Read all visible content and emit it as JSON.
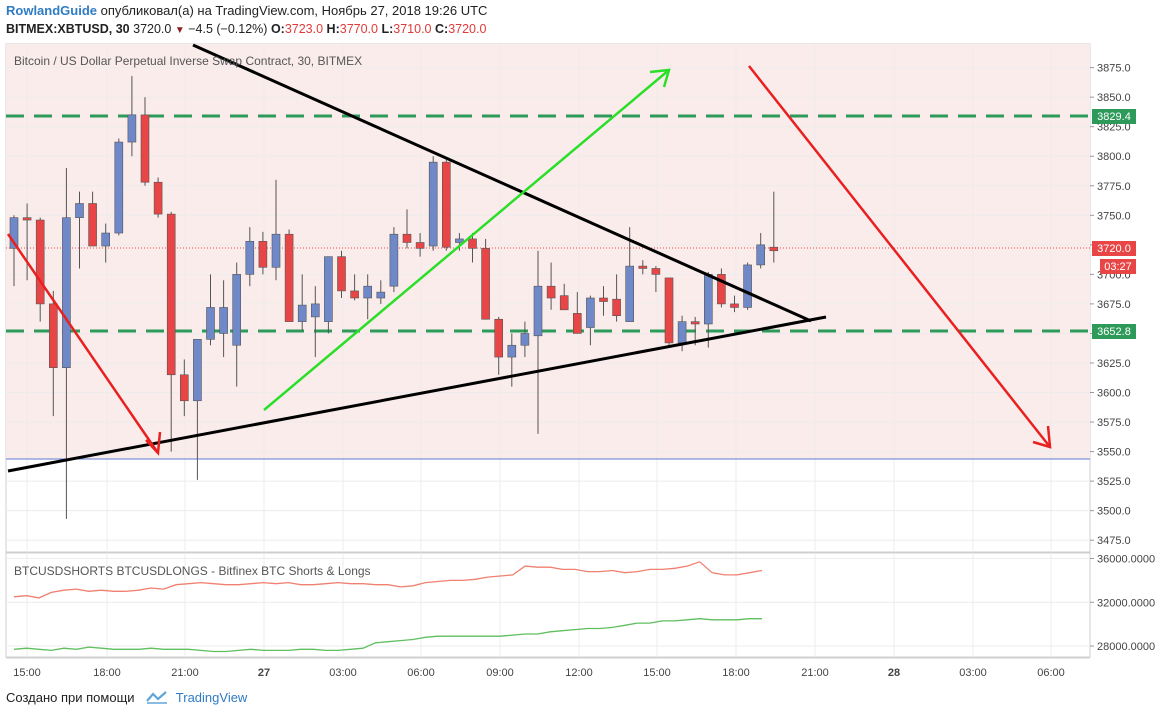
{
  "header": {
    "author": "RowlandGuide",
    "published_text": "опубликовал(а) на TradingView.com, Ноябрь 27, 2018 19:26 UTC",
    "symbol": "BITMEX:XBTUSD, 30",
    "last": "3720.0",
    "change": "−4.5 (−0.12%)",
    "o_label": "O:",
    "o_val": "3723.0",
    "h_label": "H:",
    "h_val": "3770.0",
    "l_label": "L:",
    "l_val": "3710.0",
    "c_label": "C:",
    "c_val": "3720.0"
  },
  "footer": {
    "created_with": "Создано при помощи",
    "brand": "TradingView"
  },
  "colors": {
    "up": "#6f88c8",
    "down": "#e84646",
    "bg_zone": "#fbecec",
    "green_dash": "#2e9a5a",
    "arrow_red": "#e8201f",
    "arrow_green": "#2adf27",
    "shorts": "#f08070",
    "longs": "#5fbf5f"
  },
  "chart_data": [
    {
      "type": "candlestick",
      "title": "Bitcoin / US Dollar Perpetual Inverse Swap Contract, 30, BITMEX",
      "ylim": [
        3465,
        3895
      ],
      "y_ticks": [
        "3875.0",
        "3850.0",
        "3825.0",
        "3800.0",
        "3775.0",
        "3750.0",
        "3725.0",
        "3700.0",
        "3675.0",
        "3650.0",
        "3625.0",
        "3600.0",
        "3575.0",
        "3550.0",
        "3525.0",
        "3500.0",
        "3475.0"
      ],
      "x_ticks": [
        "15:00",
        "18:00",
        "21:00",
        "27",
        "03:00",
        "06:00",
        "09:00",
        "12:00",
        "15:00",
        "18:00",
        "21:00",
        "28",
        "03:00",
        "06:00"
      ],
      "price_labels": {
        "upper_level": "3829.4",
        "last_price": "3720.0",
        "countdown": "03:27",
        "lower_level": "3652.8"
      },
      "levels": {
        "upper_dash": 3829.4,
        "lower_dash": 3652.8,
        "support_blue": 3549
      },
      "candles": [
        {
          "o": 3722,
          "h": 3750,
          "l": 3690,
          "c": 3748
        },
        {
          "o": 3748,
          "h": 3760,
          "l": 3695,
          "c": 3746
        },
        {
          "o": 3746,
          "h": 3748,
          "l": 3660,
          "c": 3675
        },
        {
          "o": 3675,
          "h": 3686,
          "l": 3580,
          "c": 3621
        },
        {
          "o": 3621,
          "h": 3790,
          "l": 3493,
          "c": 3748
        },
        {
          "o": 3748,
          "h": 3770,
          "l": 3705,
          "c": 3760
        },
        {
          "o": 3760,
          "h": 3770,
          "l": 3724,
          "c": 3724
        },
        {
          "o": 3724,
          "h": 3743,
          "l": 3710,
          "c": 3735
        },
        {
          "o": 3735,
          "h": 3815,
          "l": 3733,
          "c": 3812
        },
        {
          "o": 3812,
          "h": 3868,
          "l": 3800,
          "c": 3835
        },
        {
          "o": 3835,
          "h": 3850,
          "l": 3775,
          "c": 3778
        },
        {
          "o": 3778,
          "h": 3782,
          "l": 3748,
          "c": 3751
        },
        {
          "o": 3751,
          "h": 3753,
          "l": 3550,
          "c": 3615
        },
        {
          "o": 3615,
          "h": 3628,
          "l": 3580,
          "c": 3593
        },
        {
          "o": 3593,
          "h": 3645,
          "l": 3526,
          "c": 3645
        },
        {
          "o": 3645,
          "h": 3700,
          "l": 3640,
          "c": 3672
        },
        {
          "o": 3650,
          "h": 3695,
          "l": 3630,
          "c": 3672
        },
        {
          "o": 3640,
          "h": 3710,
          "l": 3605,
          "c": 3700
        },
        {
          "o": 3700,
          "h": 3740,
          "l": 3690,
          "c": 3728
        },
        {
          "o": 3728,
          "h": 3736,
          "l": 3700,
          "c": 3706
        },
        {
          "o": 3706,
          "h": 3780,
          "l": 3695,
          "c": 3734
        },
        {
          "o": 3734,
          "h": 3738,
          "l": 3660,
          "c": 3660
        },
        {
          "o": 3660,
          "h": 3700,
          "l": 3652,
          "c": 3674
        },
        {
          "o": 3664,
          "h": 3690,
          "l": 3630,
          "c": 3675
        },
        {
          "o": 3660,
          "h": 3715,
          "l": 3650,
          "c": 3715
        },
        {
          "o": 3715,
          "h": 3720,
          "l": 3680,
          "c": 3686
        },
        {
          "o": 3686,
          "h": 3700,
          "l": 3678,
          "c": 3680
        },
        {
          "o": 3680,
          "h": 3700,
          "l": 3662,
          "c": 3690
        },
        {
          "o": 3680,
          "h": 3695,
          "l": 3675,
          "c": 3685
        },
        {
          "o": 3690,
          "h": 3740,
          "l": 3685,
          "c": 3734
        },
        {
          "o": 3734,
          "h": 3755,
          "l": 3722,
          "c": 3727
        },
        {
          "o": 3727,
          "h": 3735,
          "l": 3715,
          "c": 3722
        },
        {
          "o": 3724,
          "h": 3800,
          "l": 3720,
          "c": 3795
        },
        {
          "o": 3795,
          "h": 3797,
          "l": 3720,
          "c": 3723
        },
        {
          "o": 3727,
          "h": 3735,
          "l": 3720,
          "c": 3730
        },
        {
          "o": 3730,
          "h": 3735,
          "l": 3710,
          "c": 3722
        },
        {
          "o": 3722,
          "h": 3730,
          "l": 3666,
          "c": 3662
        },
        {
          "o": 3662,
          "h": 3664,
          "l": 3615,
          "c": 3630
        },
        {
          "o": 3630,
          "h": 3650,
          "l": 3605,
          "c": 3640
        },
        {
          "o": 3640,
          "h": 3660,
          "l": 3630,
          "c": 3650
        },
        {
          "o": 3648,
          "h": 3720,
          "l": 3565,
          "c": 3690
        },
        {
          "o": 3690,
          "h": 3710,
          "l": 3670,
          "c": 3680
        },
        {
          "o": 3682,
          "h": 3692,
          "l": 3670,
          "c": 3670
        },
        {
          "o": 3667,
          "h": 3685,
          "l": 3650,
          "c": 3650
        },
        {
          "o": 3655,
          "h": 3682,
          "l": 3640,
          "c": 3680
        },
        {
          "o": 3680,
          "h": 3690,
          "l": 3665,
          "c": 3677
        },
        {
          "o": 3679,
          "h": 3700,
          "l": 3660,
          "c": 3665
        },
        {
          "o": 3660,
          "h": 3740,
          "l": 3660,
          "c": 3707
        },
        {
          "o": 3707,
          "h": 3712,
          "l": 3700,
          "c": 3705
        },
        {
          "o": 3705,
          "h": 3707,
          "l": 3685,
          "c": 3700
        },
        {
          "o": 3697,
          "h": 3697,
          "l": 3638,
          "c": 3642
        },
        {
          "o": 3642,
          "h": 3665,
          "l": 3635,
          "c": 3660
        },
        {
          "o": 3660,
          "h": 3664,
          "l": 3640,
          "c": 3658
        },
        {
          "o": 3658,
          "h": 3702,
          "l": 3638,
          "c": 3700
        },
        {
          "o": 3700,
          "h": 3705,
          "l": 3672,
          "c": 3675
        },
        {
          "o": 3675,
          "h": 3682,
          "l": 3668,
          "c": 3672
        },
        {
          "o": 3672,
          "h": 3710,
          "l": 3670,
          "c": 3708
        },
        {
          "o": 3708,
          "h": 3735,
          "l": 3705,
          "c": 3725
        },
        {
          "o": 3723,
          "h": 3770,
          "l": 3710,
          "c": 3720
        }
      ]
    },
    {
      "type": "line",
      "title": "BTCUSDSHORTS BTCUSDLONGS - Bitfinex BTC Shorts & Longs",
      "ylim": [
        27000,
        36500
      ],
      "y_ticks": [
        "36000.0000",
        "32000.0000",
        "28000.0000"
      ],
      "series": [
        {
          "values": [
            32500,
            32600,
            32400,
            32900,
            33100,
            33200,
            33000,
            33100,
            33000,
            33000,
            33100,
            33300,
            33200,
            33600,
            33700,
            33800,
            33700,
            33600,
            33600,
            33700,
            33800,
            33700,
            33800,
            33600,
            33600,
            33700,
            33800,
            33700,
            33700,
            33600,
            33600,
            33400,
            33500,
            33800,
            33900,
            34000,
            34000,
            34100,
            34300,
            34400,
            34500,
            35300,
            35200,
            35200,
            35000,
            35000,
            34800,
            34800,
            34900,
            34700,
            34800,
            35000,
            35000,
            35100,
            35300,
            35700,
            34700,
            34500,
            34500,
            34700,
            34900
          ]
        },
        {
          "values": [
            27700,
            27800,
            27700,
            27600,
            27800,
            27700,
            27900,
            27800,
            27700,
            27700,
            27700,
            27800,
            27700,
            27700,
            27700,
            27600,
            27500,
            27500,
            27600,
            27700,
            27600,
            27600,
            27600,
            27700,
            27700,
            27600,
            27600,
            27700,
            27800,
            28300,
            28400,
            28500,
            28600,
            28800,
            28900,
            28900,
            28900,
            28900,
            28900,
            28900,
            29000,
            29100,
            29100,
            29300,
            29400,
            29500,
            29600,
            29600,
            29700,
            29900,
            30100,
            30100,
            30300,
            30300,
            30400,
            30500,
            30400,
            30400,
            30400,
            30500,
            30500
          ]
        }
      ]
    }
  ]
}
